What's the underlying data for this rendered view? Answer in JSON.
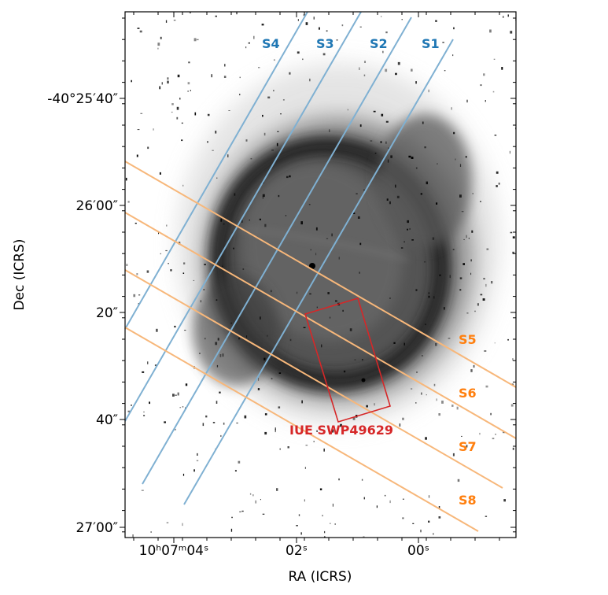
{
  "axes": {
    "xlabel": "RA (ICRS)",
    "ylabel": "Dec (ICRS)",
    "x_ticks": [
      {
        "label": "10ʰ07ᵐ04ˢ"
      },
      {
        "label": "02ˢ"
      },
      {
        "label": "00ˢ"
      }
    ],
    "y_ticks": [
      {
        "label": "-40°25′40″"
      },
      {
        "label": "26′00″"
      },
      {
        "label": "20″"
      },
      {
        "label": "40″"
      },
      {
        "label": "27′00″"
      }
    ]
  },
  "slits_blue": [
    {
      "label": "S4"
    },
    {
      "label": "S3"
    },
    {
      "label": "S2"
    },
    {
      "label": "S1"
    }
  ],
  "slits_orange": [
    {
      "label": "S5"
    },
    {
      "label": "S6"
    },
    {
      "label": "S7"
    },
    {
      "label": "S8"
    }
  ],
  "aperture": {
    "label": "IUE SWP49629"
  },
  "colors": {
    "blue_slit": "#7fb0d2",
    "blue_label": "#1f77b4",
    "orange_slit": "#f7b77a",
    "orange_label": "#ff7f0e",
    "aperture": "#d62728"
  }
}
